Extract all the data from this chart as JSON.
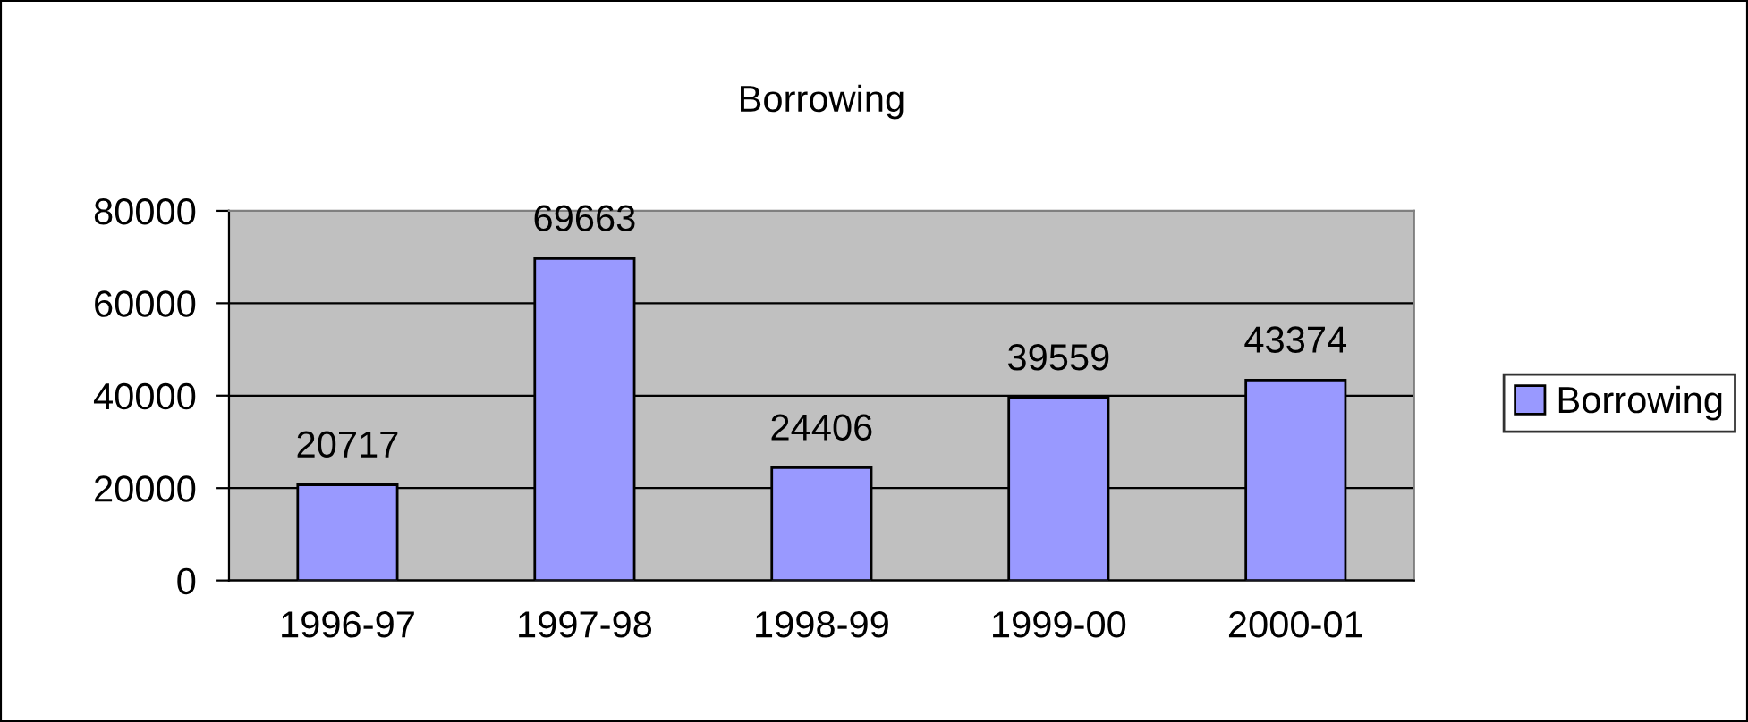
{
  "chart_data": {
    "type": "bar",
    "title": "Borrowing",
    "categories": [
      "1996-97",
      "1997-98",
      "1998-99",
      "1999-00",
      "2000-01"
    ],
    "series": [
      {
        "name": "Borrowing",
        "color": "#9999ff",
        "values": [
          20717,
          69663,
          24406,
          39559,
          43374
        ]
      }
    ],
    "ylim": [
      0,
      80000
    ],
    "yticks": [
      0,
      20000,
      40000,
      60000,
      80000
    ],
    "grid": "y",
    "legend": "right",
    "data_labels": true
  }
}
